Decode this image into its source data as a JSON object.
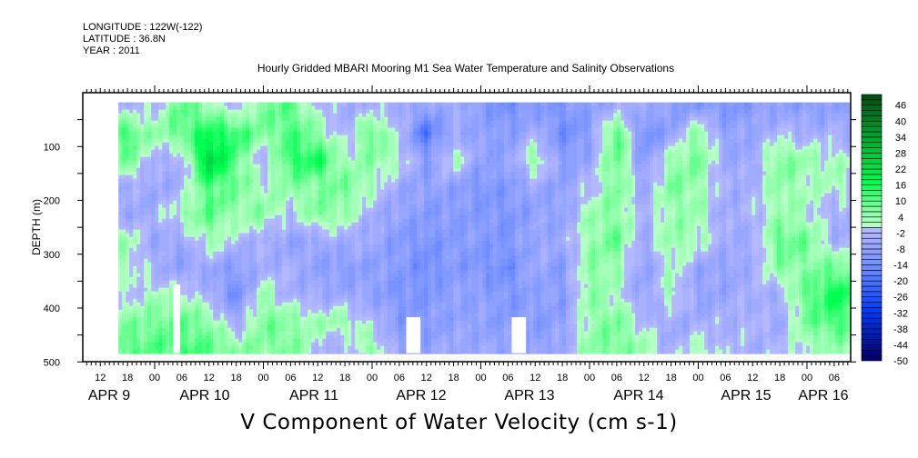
{
  "header": {
    "longitude": "LONGITUDE : 122W(-122)",
    "latitude": "LATITUDE : 36.8N",
    "year": "YEAR : 2011"
  },
  "chart_data": {
    "type": "heatmap",
    "title": "Hourly Gridded MBARI Mooring M1 Sea Water Temperature and Salinity Observations",
    "xlabel": "V Component of Water Velocity (cm s-1)",
    "ylabel": "DEPTH (m)",
    "x_unit": "hours since APR 9 00:00 (2011)",
    "xlim": [
      8,
      177.6
    ],
    "ylim": [
      500,
      0
    ],
    "data_extent": {
      "t": [
        16,
        177.4
      ],
      "depth": [
        18,
        485
      ]
    },
    "y_ticks": [
      "100",
      "200",
      "300",
      "400",
      "500"
    ],
    "x_hour_labels": [
      "12",
      "18",
      "00",
      "06",
      "12",
      "18",
      "00",
      "06",
      "12",
      "18",
      "00",
      "06",
      "12",
      "18",
      "00",
      "06",
      "12",
      "18",
      "00",
      "06",
      "12",
      "18",
      "00",
      "06",
      "12",
      "18",
      "00",
      "06"
    ],
    "x_day_labels": [
      "APR  9",
      "APR 10",
      "APR 11",
      "APR 12",
      "APR 13",
      "APR 14",
      "APR 15",
      "APR 16"
    ],
    "colorbar": {
      "min": -50,
      "max": 50,
      "step": 2,
      "labels": [
        "46",
        "40",
        "34",
        "28",
        "22",
        "16",
        "10",
        "4",
        "-2",
        "-8",
        "-14",
        "-20",
        "-26",
        "-32",
        "-38",
        "-44",
        "-50"
      ]
    },
    "depths": [
      25,
      75,
      125,
      175,
      225,
      275,
      325,
      375,
      425,
      475
    ],
    "times_hours": [
      18,
      24,
      30,
      36,
      42,
      48,
      54,
      60,
      66,
      72,
      78,
      84,
      90,
      96,
      102,
      108,
      114,
      120,
      126,
      132,
      138,
      144,
      150,
      156,
      162,
      168,
      174
    ],
    "values": [
      [
        -4,
        12,
        8,
        -4,
        -6,
        4,
        2,
        -2,
        6,
        10
      ],
      [
        -2,
        4,
        -4,
        -6,
        -4,
        -6,
        -4,
        2,
        8,
        10
      ],
      [
        10,
        10,
        -4,
        -4,
        4,
        -6,
        -8,
        2,
        10,
        12
      ],
      [
        4,
        16,
        26,
        12,
        10,
        4,
        -6,
        -4,
        6,
        10
      ],
      [
        -4,
        14,
        10,
        8,
        4,
        -2,
        -10,
        -14,
        -6,
        6
      ],
      [
        8,
        6,
        -4,
        2,
        6,
        -4,
        -4,
        4,
        8,
        6
      ],
      [
        10,
        12,
        14,
        6,
        -2,
        -8,
        -4,
        -4,
        6,
        8
      ],
      [
        -2,
        6,
        16,
        6,
        8,
        -6,
        -8,
        -6,
        4,
        -2
      ],
      [
        -4,
        -4,
        2,
        8,
        4,
        -4,
        -10,
        -6,
        4,
        -4
      ],
      [
        -4,
        10,
        6,
        2,
        -4,
        -6,
        -8,
        -8,
        -2,
        6
      ],
      [
        -4,
        -2,
        2,
        -6,
        -8,
        -10,
        -10,
        -12,
        -10,
        -8
      ],
      [
        -8,
        -20,
        -10,
        -8,
        -10,
        -12,
        -14,
        -12,
        -10,
        -8
      ],
      [
        -4,
        -6,
        4,
        -8,
        -10,
        -10,
        -10,
        -8,
        -8,
        -6
      ],
      [
        -10,
        -8,
        -8,
        -12,
        -10,
        -10,
        -12,
        -8,
        -8,
        -6
      ],
      [
        -14,
        -10,
        -8,
        -10,
        -12,
        -12,
        -14,
        -12,
        -10,
        -8
      ],
      [
        -10,
        -4,
        6,
        -6,
        -8,
        -6,
        -6,
        -8,
        -10,
        -8
      ],
      [
        -12,
        -14,
        -10,
        -8,
        -8,
        -6,
        -10,
        -10,
        -8,
        -6
      ],
      [
        -8,
        -10,
        -6,
        -2,
        4,
        4,
        6,
        6,
        4,
        6
      ],
      [
        -6,
        12,
        10,
        8,
        6,
        10,
        4,
        2,
        8,
        8
      ],
      [
        -4,
        -14,
        -10,
        -6,
        -4,
        -6,
        -8,
        -8,
        -2,
        4
      ],
      [
        -10,
        -8,
        4,
        8,
        4,
        6,
        2,
        4,
        -6,
        -4
      ],
      [
        -10,
        6,
        8,
        4,
        4,
        2,
        -6,
        -8,
        -4,
        2
      ],
      [
        -12,
        -8,
        -6,
        -4,
        -6,
        -4,
        -8,
        -6,
        -4,
        -2
      ],
      [
        -10,
        -6,
        -6,
        -4,
        -2,
        -6,
        -4,
        -4,
        -2,
        -4
      ],
      [
        -8,
        -2,
        8,
        6,
        4,
        10,
        6,
        -4,
        -6,
        -2
      ],
      [
        -10,
        -4,
        4,
        2,
        2,
        8,
        6,
        10,
        8,
        2
      ],
      [
        -8,
        -4,
        2,
        2,
        -4,
        -4,
        8,
        16,
        12,
        4
      ]
    ],
    "missing": [
      {
        "t": [
          28.4,
          30.0
        ],
        "depth": [
          356,
          485
        ]
      },
      {
        "t": [
          79.4,
          82.8
        ],
        "depth": [
          417,
          485
        ]
      },
      {
        "t": [
          102.5,
          106.0
        ],
        "depth": [
          417,
          485
        ]
      }
    ]
  }
}
